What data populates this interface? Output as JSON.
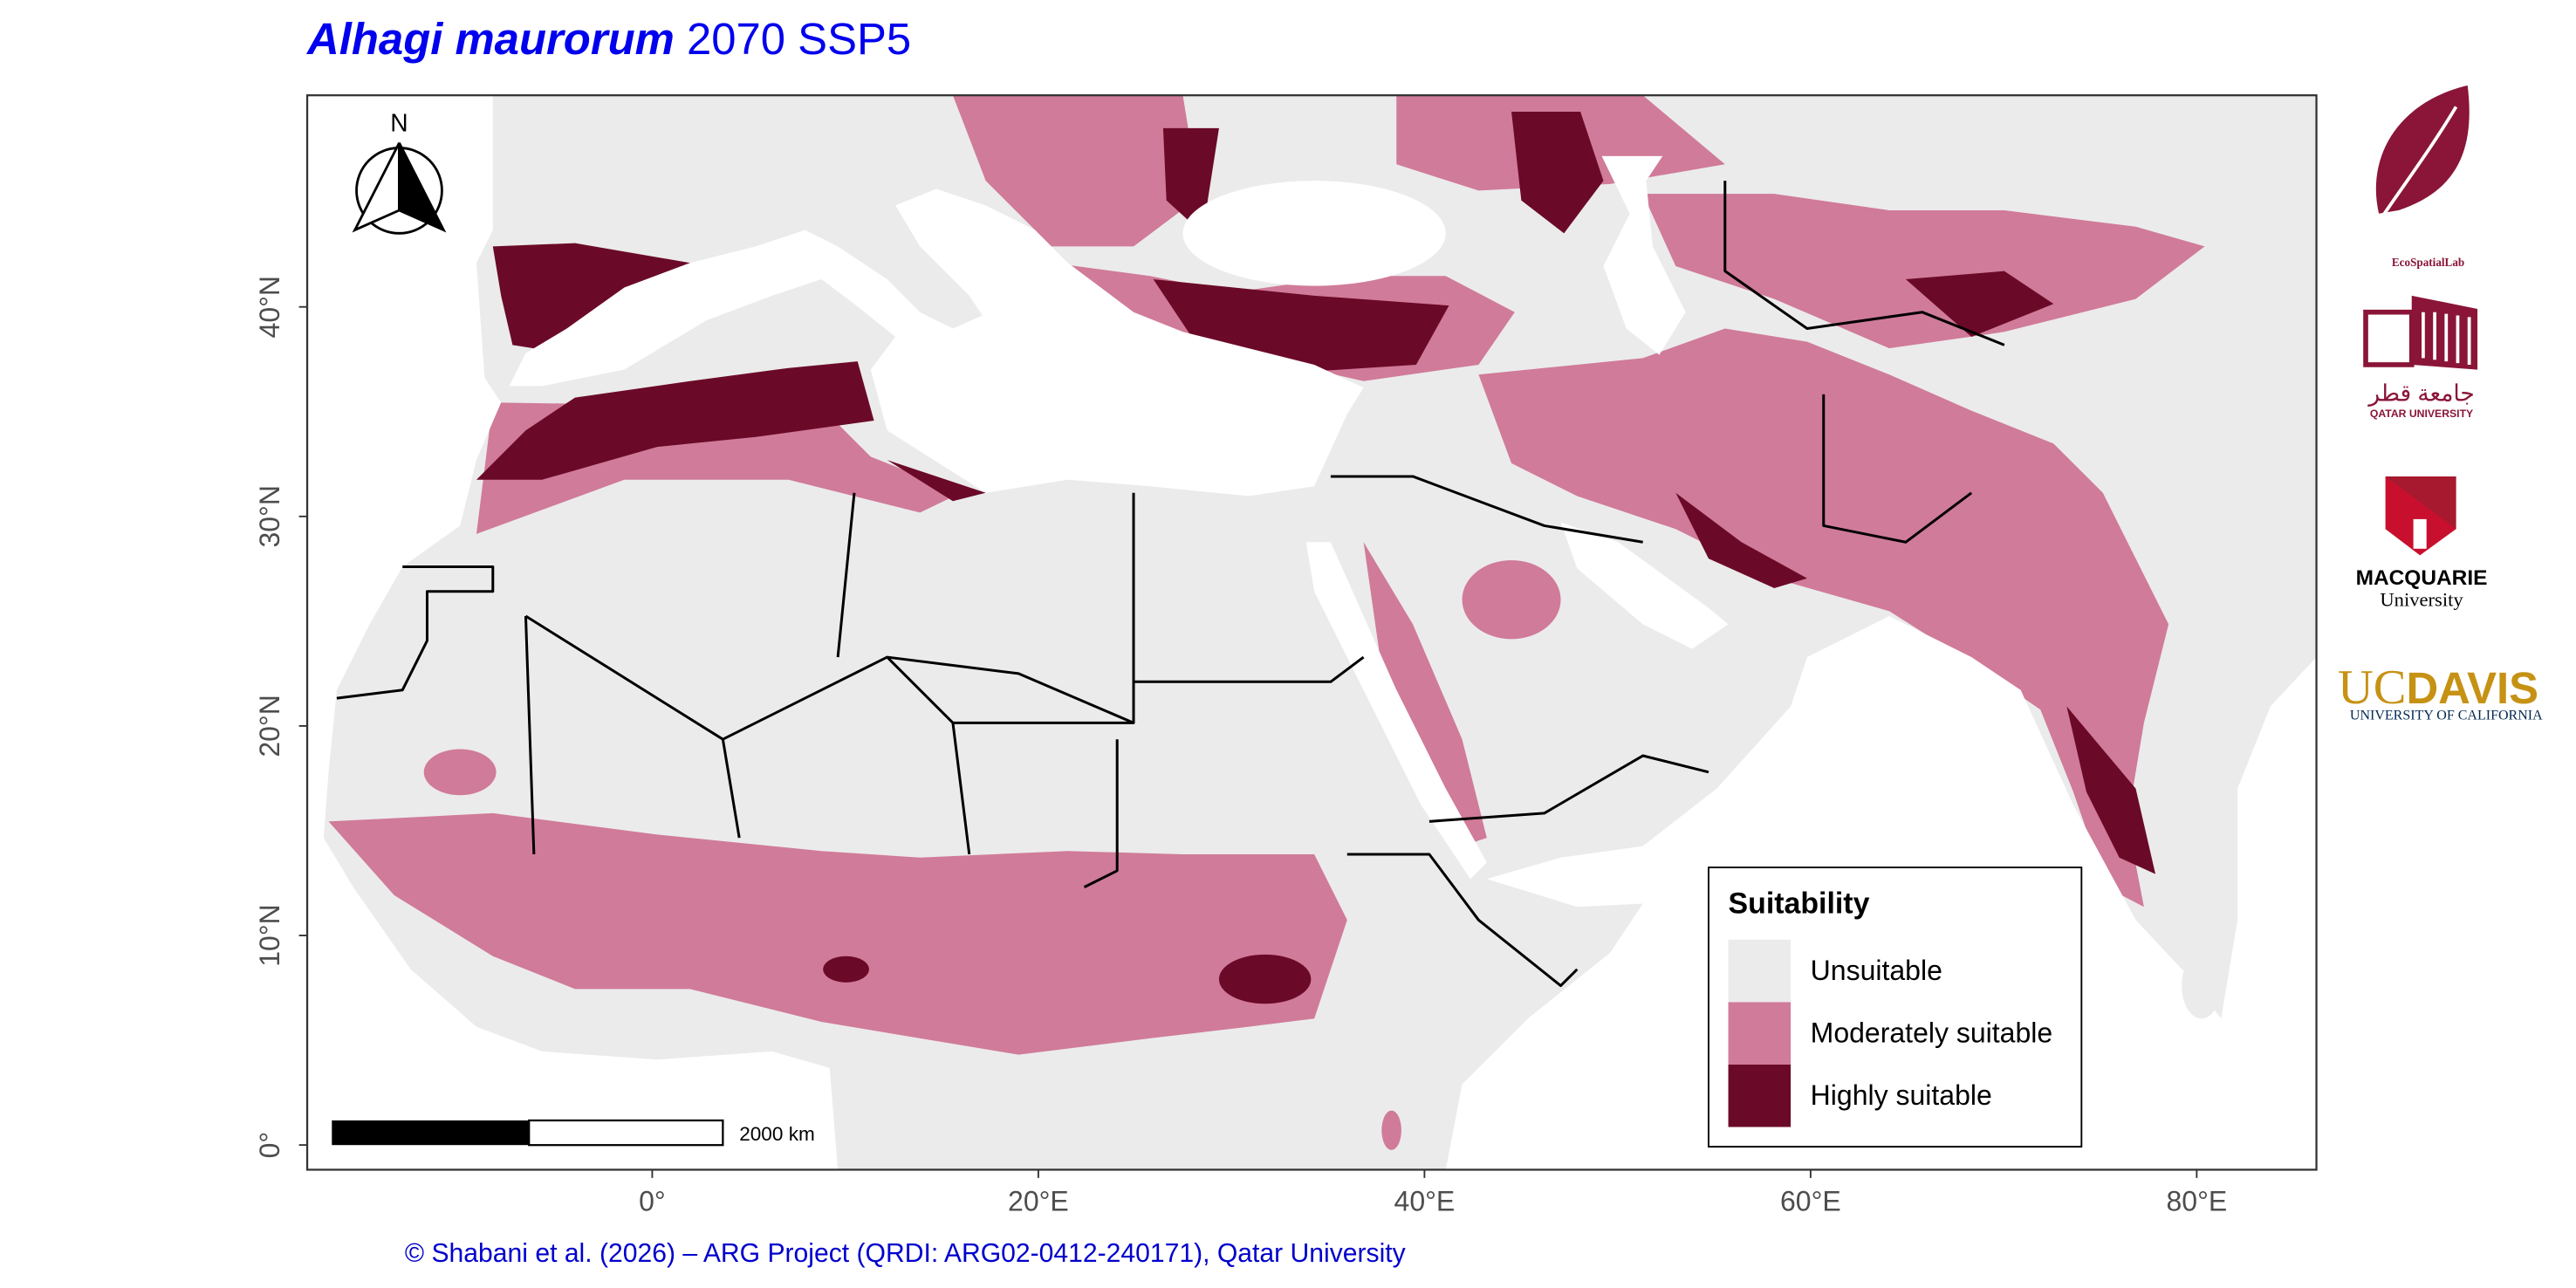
{
  "title": {
    "species": "Alhagi maurorum",
    "scenario": "2070 SSP5"
  },
  "map": {
    "xlim": [
      -17.87,
      86.2
    ],
    "ylim": [
      -1.18,
      50.1
    ],
    "xticks": [
      {
        "value": 0,
        "label": "0°"
      },
      {
        "value": 20,
        "label": "20°E"
      },
      {
        "value": 40,
        "label": "40°E"
      },
      {
        "value": 60,
        "label": "60°E"
      },
      {
        "value": 80,
        "label": "80°E"
      }
    ],
    "yticks": [
      {
        "value": 0,
        "label": "0°"
      },
      {
        "value": 10,
        "label": "10°N"
      },
      {
        "value": 20,
        "label": "20°N"
      },
      {
        "value": 30,
        "label": "30°N"
      },
      {
        "value": 40,
        "label": "40°N"
      }
    ],
    "north_label": "N",
    "scale_bar": "2000 km"
  },
  "legend": {
    "title": "Suitability",
    "items": [
      {
        "label": "Unsuitable",
        "color": "#ebebeb"
      },
      {
        "label": "Moderately suitable",
        "color": "#d07b99"
      },
      {
        "label": "Highly suitable",
        "color": "#6b0a28"
      }
    ]
  },
  "logos": {
    "ecospatial": "EcoSpatialLab",
    "qatar_arabic": "جامعة قطر",
    "qatar": "QATAR UNIVERSITY",
    "macquarie": "MACQUARIE",
    "macquarie_sub": "University",
    "ucdavis_uc": "UC",
    "ucdavis": "DAVIS",
    "ucdavis_sub": "UNIVERSITY OF CALIFORNIA"
  },
  "credit": "© Shabani et al. (2026) – ARG Project (QRDI: ARG02-0412-240171), Qatar University"
}
